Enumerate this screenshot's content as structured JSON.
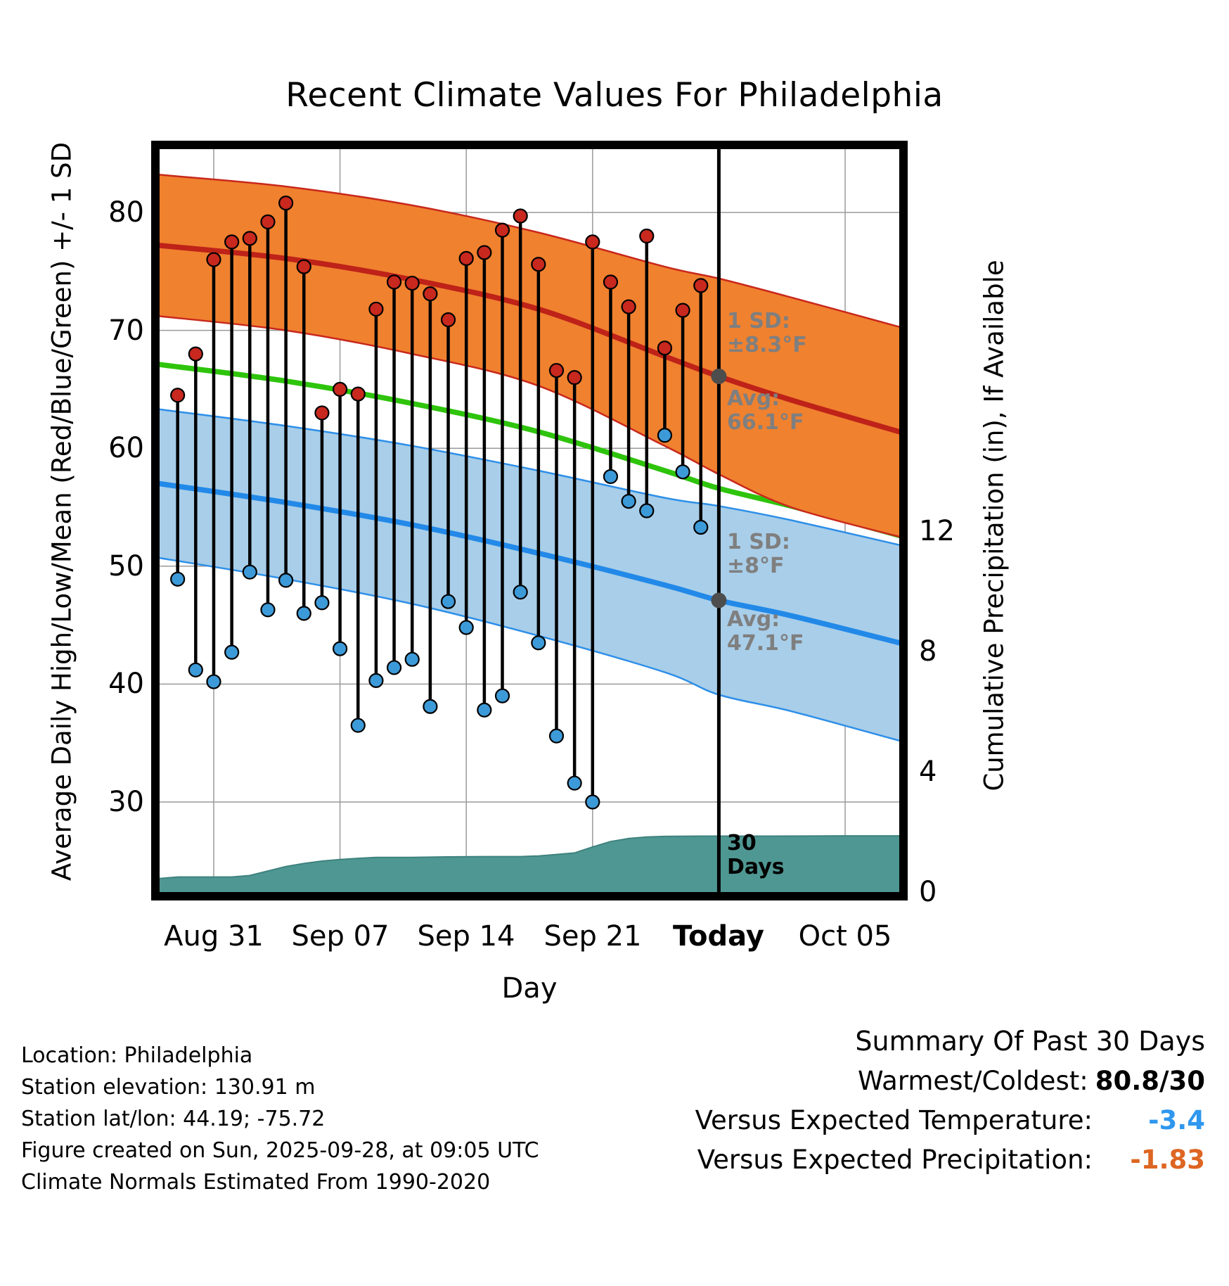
{
  "title": "Recent Climate Values For Philadelphia",
  "axes": {
    "left_label": "Average Daily High/Low/Mean (Red/Blue/Green) +/- 1 SD",
    "right_label": "Cumulative Precipitation (in), If Available",
    "x_label": "Day"
  },
  "annotations": {
    "high_sd": "1 SD:\n±8.3°F",
    "high_avg": "Avg:\n66.1°F",
    "low_sd": "1 SD:\n±8°F",
    "low_avg": "Avg:\n47.1°F",
    "days": "30\nDays"
  },
  "footer": {
    "lines": [
      "Location: Philadelphia",
      "Station elevation: 130.91 m",
      "Station lat/lon: 44.19; -75.72",
      "Figure created on Sun, 2025-09-28, at 09:05 UTC",
      "Climate Normals Estimated From 1990-2020"
    ]
  },
  "summary": {
    "heading": "Summary Of Past 30 Days",
    "rows": [
      {
        "label": "Warmest/Coldest:",
        "value": "80.8/30",
        "color": "#000000"
      },
      {
        "label": "Versus Expected Temperature:",
        "value": "-3.4",
        "color": "#2F97EE"
      },
      {
        "label": "Versus Expected Precipitation:",
        "value": "-1.83",
        "color": "#DD6622"
      }
    ]
  },
  "colors": {
    "grid": "#9a9a9a",
    "high_band": "#F0812F",
    "high_edge": "#C8281C",
    "high_mean": "#BE2218",
    "high_dot": "#C8281E",
    "low_band": "#A8CEE9",
    "low_edge": "#2E8FE8",
    "low_mean": "#2289E8",
    "low_dot": "#3D9AD8",
    "green_mean": "#2EC40C",
    "stem": "#000000",
    "precip_fill": "#4F9792",
    "precip_edge": "#3E827E",
    "today_line": "#000000",
    "gray_annotation": "#7F7F7F",
    "marker_gray": "#4D4D4D"
  },
  "chart_data": {
    "type": "line",
    "title": "Recent Climate Values For Philadelphia",
    "xlabel": "Day",
    "ylabel_left": "Average Daily High/Low/Mean (Red/Blue/Green) +/- 1 SD",
    "ylabel_right": "Cumulative Precipitation (in), If Available",
    "x_day_span": 41,
    "x_domain_note": "day index 0 = Aug 28, day 41 = Oct 08 (estimated from tick spacing)",
    "today_day": 31,
    "x_ticks": [
      {
        "label": "Aug 31",
        "day": 3,
        "bold": false
      },
      {
        "label": "Sep 07",
        "day": 10,
        "bold": false
      },
      {
        "label": "Sep 14",
        "day": 17,
        "bold": false
      },
      {
        "label": "Sep 21",
        "day": 24,
        "bold": false
      },
      {
        "label": "Today",
        "day": 31,
        "bold": true
      },
      {
        "label": "Oct 05",
        "day": 38,
        "bold": false
      }
    ],
    "y_left_ticks": [
      30,
      40,
      50,
      60,
      70,
      80
    ],
    "y_left_range": [
      22.4,
      85.4
    ],
    "y_right_ticks": [
      0,
      4,
      8,
      12
    ],
    "grid": true,
    "daily": {
      "dates": [
        "Aug 29",
        "Aug 30",
        "Aug 31",
        "Sep 01",
        "Sep 02",
        "Sep 03",
        "Sep 04",
        "Sep 05",
        "Sep 06",
        "Sep 07",
        "Sep 08",
        "Sep 09",
        "Sep 10",
        "Sep 11",
        "Sep 12",
        "Sep 13",
        "Sep 14",
        "Sep 15",
        "Sep 16",
        "Sep 17",
        "Sep 18",
        "Sep 19",
        "Sep 20",
        "Sep 21",
        "Sep 22",
        "Sep 23",
        "Sep 24",
        "Sep 25",
        "Sep 26",
        "Sep 27"
      ],
      "day_index": [
        1,
        2,
        3,
        4,
        5,
        6,
        7,
        8,
        9,
        10,
        11,
        12,
        13,
        14,
        15,
        16,
        17,
        18,
        19,
        20,
        21,
        22,
        23,
        24,
        25,
        26,
        27,
        28,
        29,
        30
      ],
      "high": [
        64.5,
        68.0,
        76.0,
        77.5,
        77.8,
        79.2,
        80.8,
        75.4,
        63.0,
        65.0,
        64.6,
        71.8,
        74.1,
        74.0,
        73.1,
        70.9,
        76.1,
        76.6,
        78.5,
        79.7,
        75.6,
        66.6,
        66.0,
        77.5,
        74.1,
        72.0,
        78.0,
        68.5,
        71.7,
        73.8
      ],
      "low": [
        48.9,
        41.2,
        40.2,
        42.7,
        49.5,
        46.3,
        48.8,
        46.0,
        46.9,
        43.0,
        36.5,
        40.3,
        41.4,
        42.1,
        38.1,
        47.0,
        44.8,
        37.8,
        39.0,
        47.8,
        43.5,
        35.6,
        31.6,
        30.0,
        57.6,
        55.5,
        54.7,
        61.1,
        58.0,
        53.3
      ]
    },
    "climatology": {
      "days": [
        0,
        7,
        14,
        21,
        28,
        31,
        35,
        41
      ],
      "high_mean": [
        77.2,
        76.1,
        74.3,
        71.8,
        67.8,
        66.1,
        64.1,
        61.4
      ],
      "high_upper": [
        83.2,
        82.2,
        80.6,
        78.3,
        75.4,
        74.4,
        72.8,
        70.3
      ],
      "high_lower": [
        71.2,
        70.0,
        68.0,
        65.3,
        60.2,
        57.8,
        55.0,
        52.5
      ],
      "low_mean": [
        57.0,
        55.4,
        53.5,
        51.1,
        48.4,
        47.1,
        45.8,
        43.5
      ],
      "low_upper": [
        63.3,
        61.9,
        60.2,
        58.1,
        55.8,
        55.1,
        53.9,
        51.8
      ],
      "low_lower": [
        50.7,
        48.9,
        46.8,
        44.1,
        41.0,
        39.1,
        37.7,
        35.2
      ],
      "mean_green": [
        67.1,
        65.7,
        63.8,
        61.4,
        58.1,
        56.6,
        55.1,
        52.6
      ]
    },
    "precip_cumulative": {
      "units": "in",
      "days": [
        0,
        1,
        2,
        3,
        4,
        5,
        6,
        7,
        8,
        9,
        10,
        11,
        12,
        14,
        16,
        18,
        20,
        21,
        22,
        23,
        24,
        25,
        26,
        27,
        28,
        30,
        34,
        38,
        41
      ],
      "values": [
        0.45,
        0.5,
        0.5,
        0.5,
        0.5,
        0.55,
        0.7,
        0.85,
        0.95,
        1.03,
        1.08,
        1.12,
        1.15,
        1.15,
        1.17,
        1.18,
        1.18,
        1.2,
        1.25,
        1.3,
        1.5,
        1.68,
        1.78,
        1.83,
        1.85,
        1.86,
        1.86,
        1.87,
        1.87
      ]
    },
    "stats": {
      "high_avg_f": 66.1,
      "high_sd_f": 8.3,
      "low_avg_f": 47.1,
      "low_sd_f": 8.0,
      "warmest": 80.8,
      "coldest": 30,
      "vs_expected_temp": -3.4,
      "vs_expected_precip": -1.83,
      "window_days": 30
    },
    "legend_position": "none"
  }
}
